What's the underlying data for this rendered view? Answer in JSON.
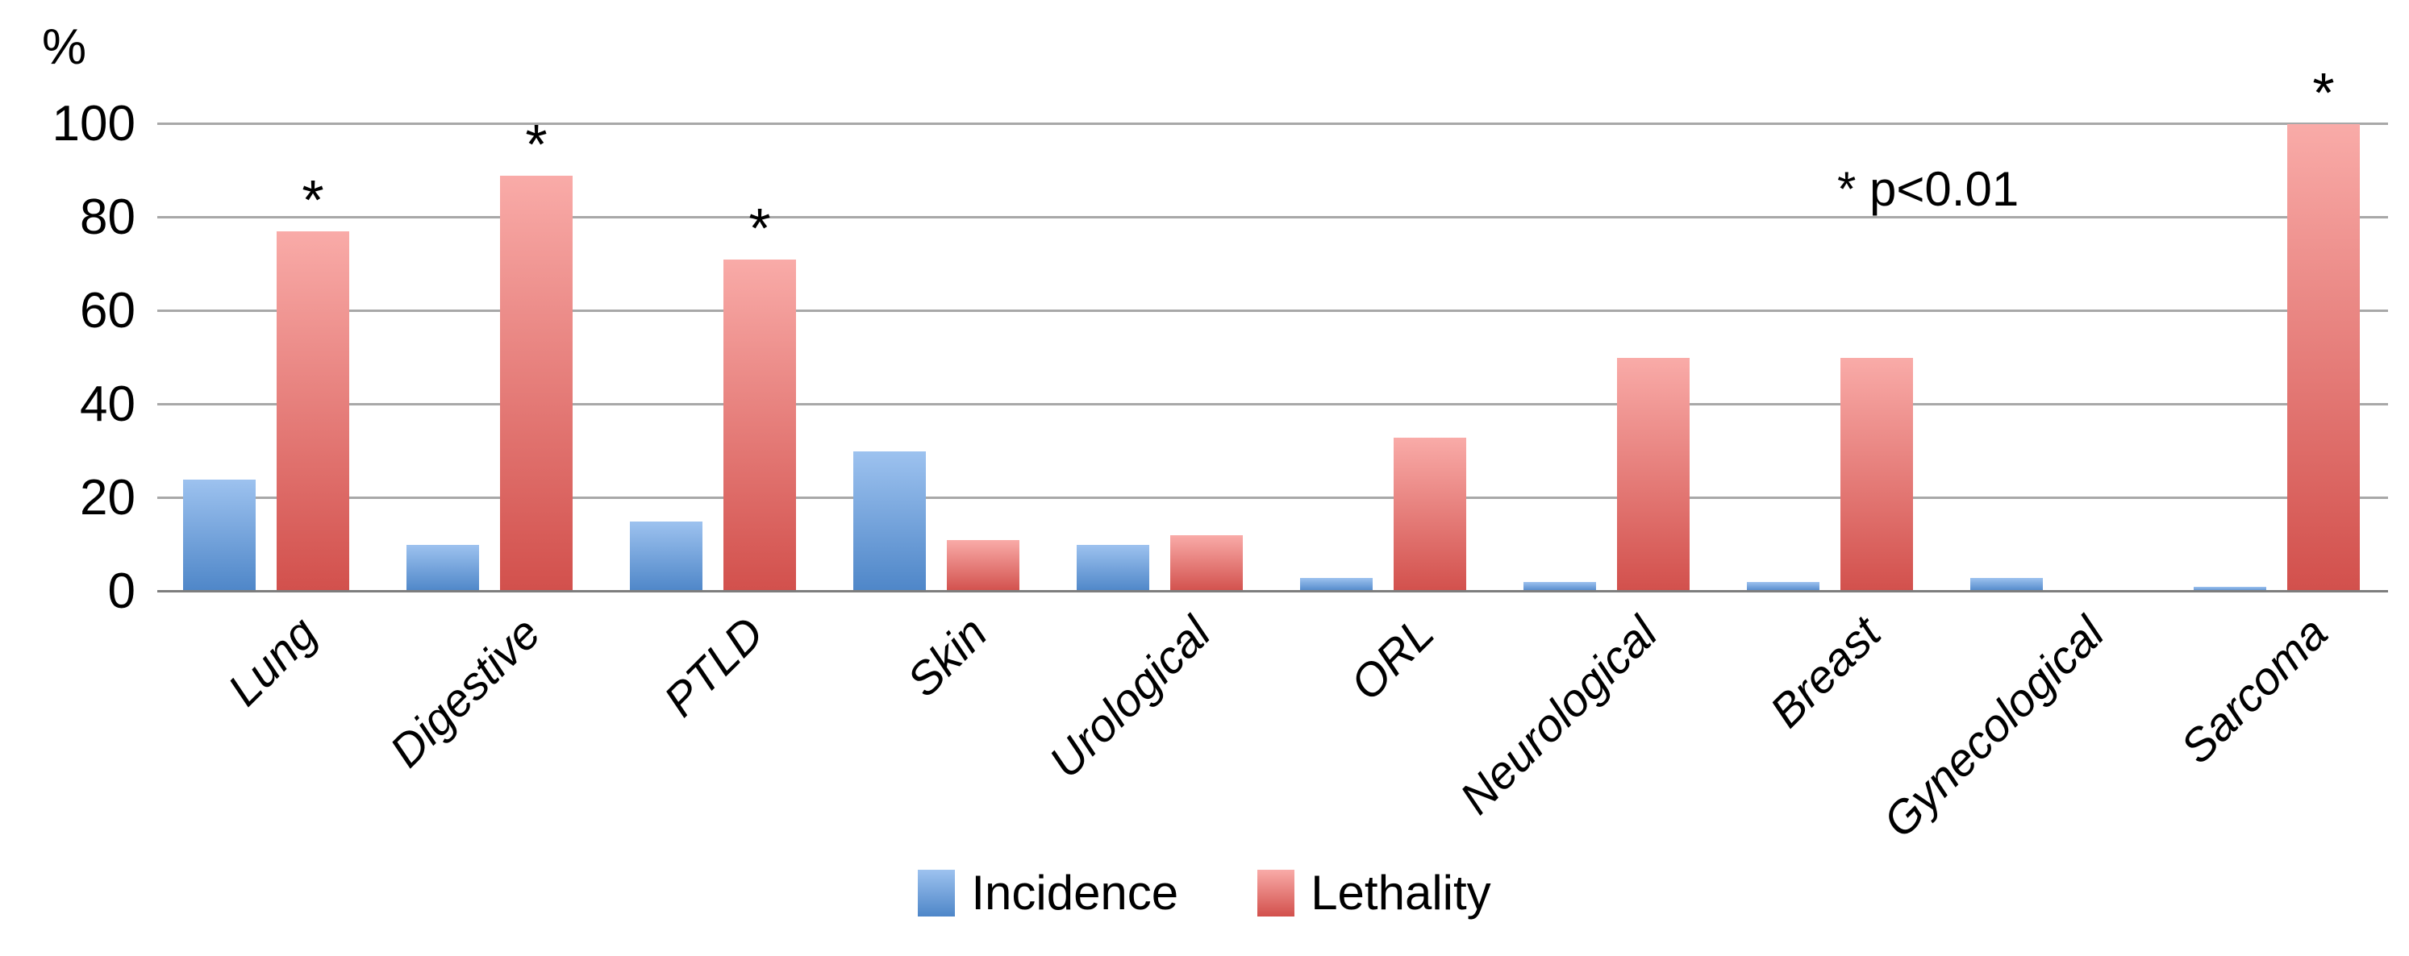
{
  "chart_data": {
    "type": "bar",
    "title": "",
    "ylabel": "%",
    "xlabel": "",
    "ylim": [
      0,
      100
    ],
    "yticks": [
      0,
      20,
      40,
      60,
      80,
      100
    ],
    "grid": true,
    "legend_position": "bottom-center",
    "categories": [
      "Lung",
      "Digestive",
      "PTLD",
      "Skin",
      "Urological",
      "ORL",
      "Neurological",
      "Breast",
      "Gynecological",
      "Sarcoma"
    ],
    "series": [
      {
        "name": "Incidence",
        "color_top": "#9dc2ef",
        "color_bottom": "#4e86c8",
        "values": [
          24,
          10,
          15,
          30,
          10,
          3,
          2,
          2,
          3,
          1
        ]
      },
      {
        "name": "Lethality",
        "color_top": "#f9aba8",
        "color_bottom": "#d2504c",
        "values": [
          77,
          89,
          71,
          11,
          12,
          33,
          50,
          50,
          0,
          100
        ]
      }
    ],
    "significance_marker": "*",
    "significant_categories": [
      "Lung",
      "Digestive",
      "PTLD",
      "Sarcoma"
    ],
    "annotation": "* p<0.01",
    "gridline_color": "#a8a8a8",
    "axis_line_color": "#7d7d7d"
  }
}
